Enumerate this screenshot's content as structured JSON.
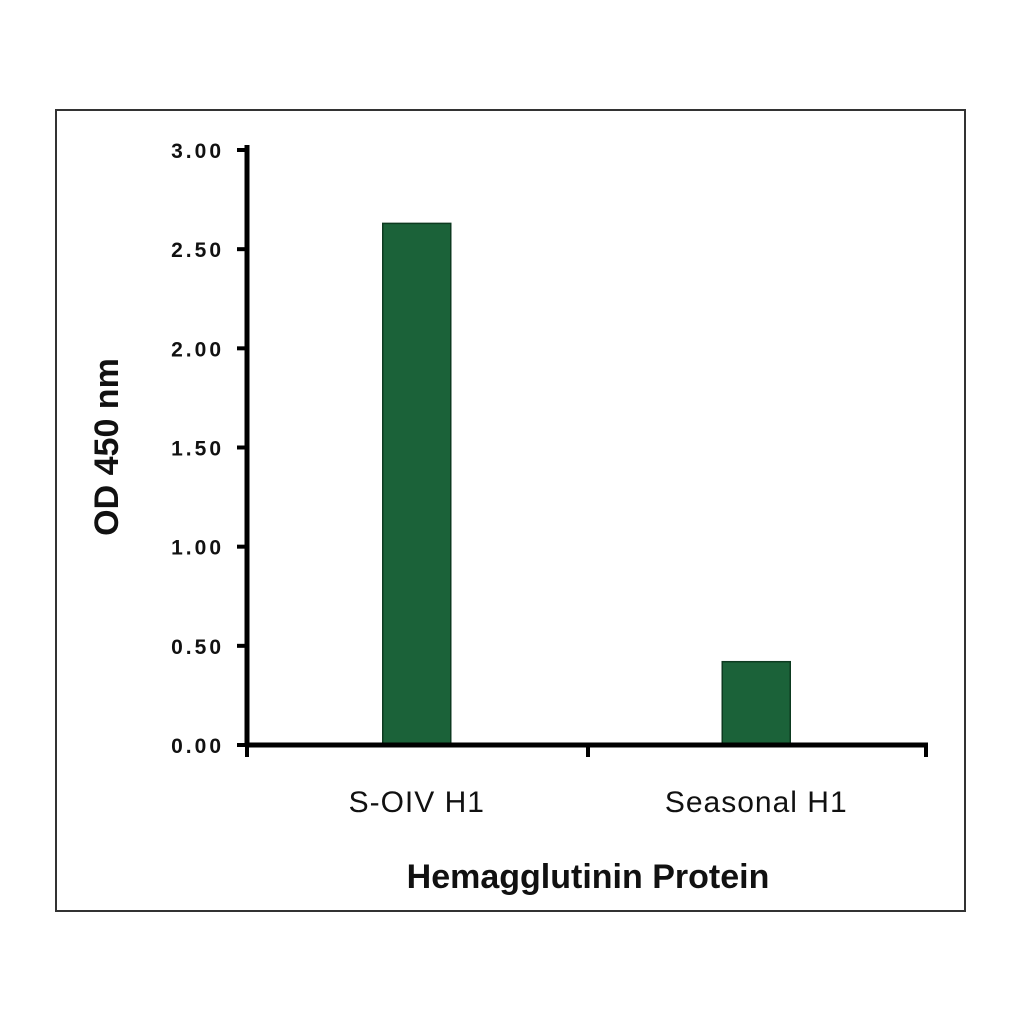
{
  "chart_data": {
    "type": "bar",
    "categories": [
      "S-OIV H1",
      "Seasonal H1"
    ],
    "values": [
      2.63,
      0.42
    ],
    "title": "",
    "xlabel": "Hemagglutinin Protein",
    "ylabel": "OD 450 nm",
    "ylim": [
      0,
      3
    ],
    "yticks": [
      "0.00",
      "0.50",
      "1.00",
      "1.50",
      "2.00",
      "2.50",
      "3.00"
    ],
    "grid": false,
    "legend": "none",
    "bar_color": "#1b6239"
  }
}
